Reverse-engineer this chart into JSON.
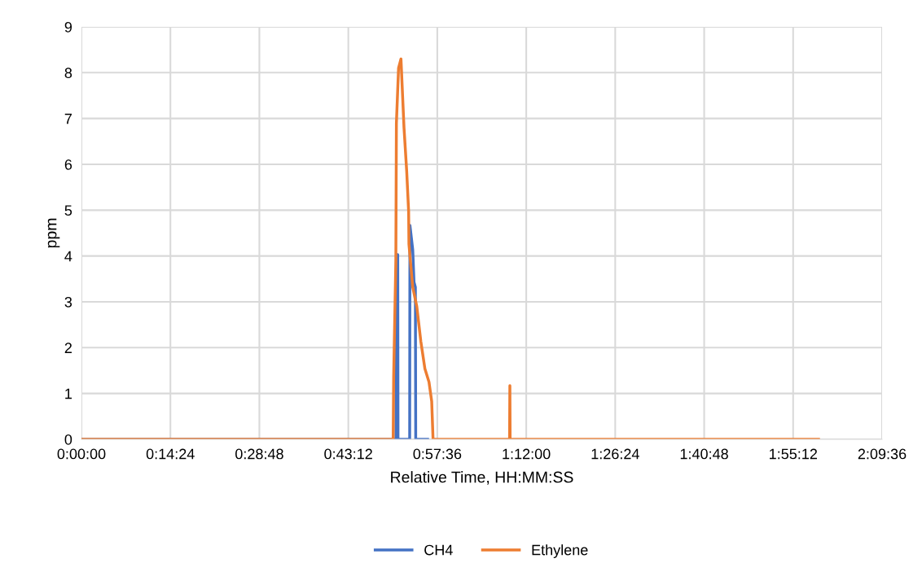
{
  "chart_data": {
    "type": "line",
    "xlabel": "Relative Time, HH:MM:SS",
    "ylabel": "ppm",
    "xlim": [
      0,
      2.16
    ],
    "xticks": [
      {
        "value": 0,
        "label": "0:00:00"
      },
      {
        "value": 0.24,
        "label": "0:14:24"
      },
      {
        "value": 0.48,
        "label": "0:28:48"
      },
      {
        "value": 0.72,
        "label": "0:43:12"
      },
      {
        "value": 0.96,
        "label": "0:57:36"
      },
      {
        "value": 1.2,
        "label": "1:12:00"
      },
      {
        "value": 1.44,
        "label": "1:26:24"
      },
      {
        "value": 1.68,
        "label": "1:40:48"
      },
      {
        "value": 1.92,
        "label": "1:55:12"
      },
      {
        "value": 2.16,
        "label": "2:09:36"
      }
    ],
    "ylim": [
      0,
      9
    ],
    "yticks": [
      0,
      1,
      2,
      3,
      4,
      5,
      6,
      7,
      8,
      9
    ],
    "grid": true,
    "legend": "bottom",
    "marker": "none",
    "line_style": "solid",
    "series": [
      {
        "name": "CH4",
        "color": "#4472c4",
        "x": [
          0,
          0.8485,
          0.8497,
          0.8533,
          0.854,
          0.8855,
          0.8862,
          0.8937,
          0.8972,
          0.9009,
          0.9018,
          0.9025,
          0.9339
        ],
        "values": [
          0,
          0,
          4.03,
          4.03,
          0,
          0,
          4.67,
          4.14,
          3.43,
          3.32,
          0,
          0,
          0
        ]
      },
      {
        "name": "Ethylene",
        "color": "#ed7d31",
        "x": [
          0,
          0.841,
          0.8423,
          0.8482,
          0.8497,
          0.8555,
          0.862,
          0.8642,
          0.8702,
          0.8774,
          0.8827,
          0.8835,
          0.8937,
          0.9047,
          0.9157,
          0.9266,
          0.9376,
          0.9449,
          0.9486,
          1.155,
          1.1558,
          1.1565,
          1.9886
        ],
        "values": [
          0,
          0,
          1.37,
          3.9,
          6.9,
          8.1,
          8.3,
          7.9,
          6.8,
          5.86,
          4.97,
          4.26,
          3.32,
          2.9,
          2.13,
          1.54,
          1.25,
          0.83,
          0,
          0,
          1.17,
          0,
          0
        ]
      }
    ]
  }
}
